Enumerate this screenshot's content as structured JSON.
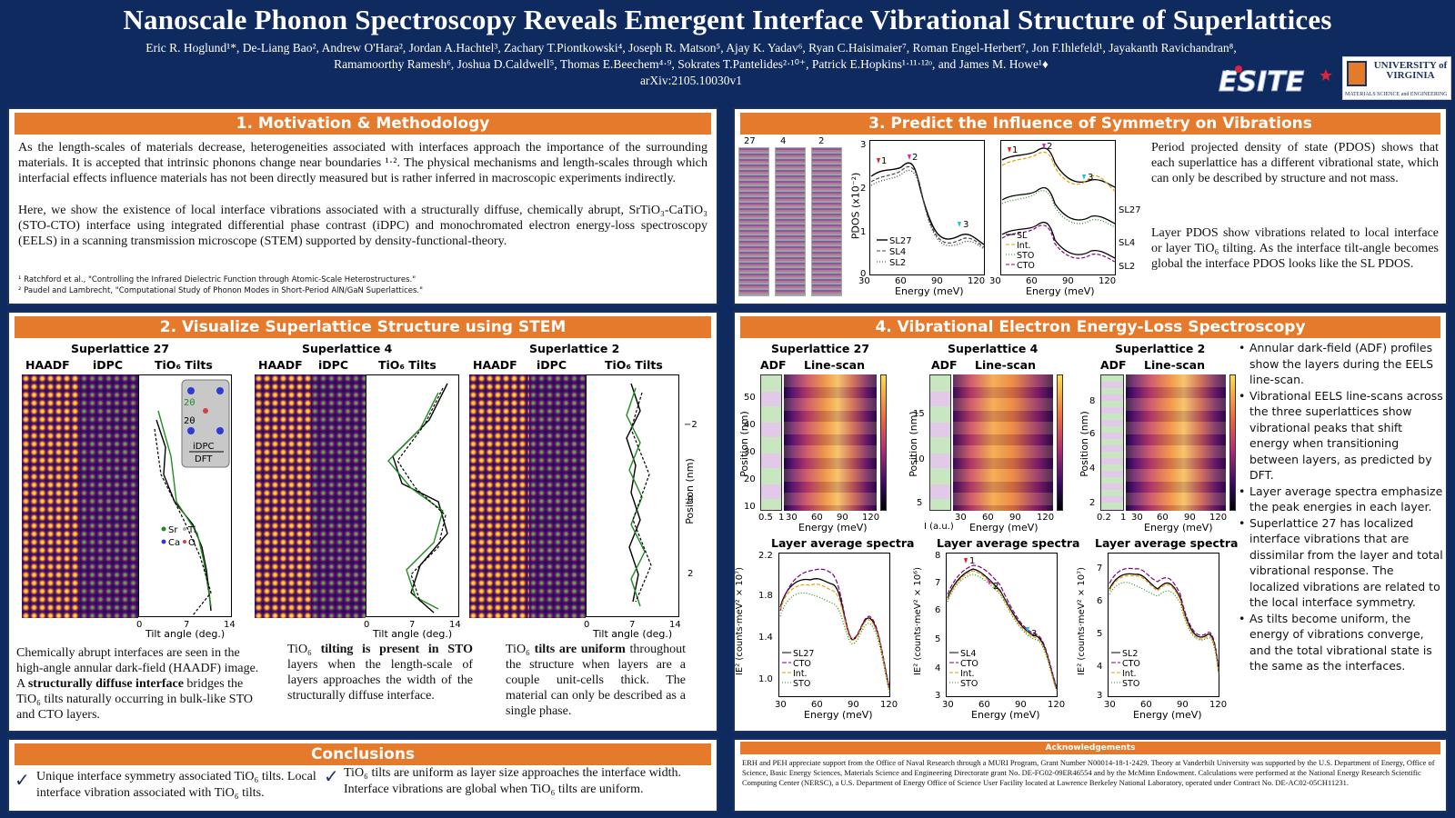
{
  "header": {
    "title": "Nanoscale Phonon Spectroscopy Reveals Emergent Interface Vibrational Structure of Superlattices",
    "authors_line1": "Eric R. Hoglund¹*, De-Liang Bao², Andrew O'Hara², Jordan A.Hachtel³, Zachary T.Piontkowski⁴, Joseph R. Matson⁵, Ajay K. Yadav⁶, Ryan C.Haisimaier⁷, Roman Engel-Herbert⁷, Jon F.Ihlefeld¹, Jayakanth Ravichandran⁸,",
    "authors_line2": "Ramamoorthy Ramesh⁶, Joshua D.Caldwell⁵, Thomas E.Beechem⁴·⁹, Sokrates T.Pantelides²·¹⁰⁺, Patrick E.Hopkins¹·¹¹·¹²ᵒ, and James M. Howe¹♦",
    "arxiv": "arXiv:2105.10030v1",
    "logo_esite": "ESITE",
    "logo_uva": "UNIVERSITY of VIRGINIA",
    "logo_uva_sub": "MATERIALS SCIENCE and ENGINEERING"
  },
  "panel1": {
    "heading": "1. Motivation & Methodology",
    "para1": "As the length-scales of materials decrease, heterogeneities associated with interfaces approach the importance of the surrounding materials. It is accepted that intrinsic phonons change near boundaries ¹·². The physical mechanisms and length-scales through which interfacial effects influence materials has not been directly measured but is rather inferred in macroscopic experiments indirectly.",
    "para2": "Here, we show the existence of local interface vibrations associated with a structurally diffuse, chemically abrupt, SrTiO₃-CaTiO₃ (STO-CTO) interface using integrated differential phase contrast (iDPC) and monochromated electron energy-loss spectroscopy (EELS) in a scanning transmission microscope (STEM) supported by density-functional-theory.",
    "ref1": "¹ Ratchford et al., \"Controlling the Infrared Dielectric Function through Atomic-Scale Heterostructures.\"",
    "ref2": "² Paudel and Lambrecht, \"Computational Study of Phonon Modes in Short-Period AlN/GaN Superlattices.\""
  },
  "panel2": {
    "heading": "2. Visualize Superlattice Structure using STEM",
    "groups": [
      {
        "title": "Superlattice 27",
        "haadf": "HAADF",
        "idpc": "iDPC",
        "tilts": "TiO₆ Tilts"
      },
      {
        "title": "Superlattice 4",
        "haadf": "HAADF",
        "idpc": "iDPC",
        "tilts": "TiO₆ Tilts"
      },
      {
        "title": "Superlattice 2",
        "haadf": "HAADF",
        "idpc": "iDPC",
        "tilts": "TiO₆ Tilts"
      }
    ],
    "xaxis_label": "Tilt angle (deg.)",
    "xticks": [
      "0",
      "7",
      "14"
    ],
    "yaxis_label": "Position (nm)",
    "yticks": [
      "−2",
      "0",
      "2"
    ],
    "inset": {
      "theta1": "2θ",
      "theta2": "2θ",
      "idpc": "iDPC",
      "dft": "DFT"
    },
    "legend": {
      "sr": "Sr",
      "ti": "Ti",
      "ca": "Ca",
      "o": "O"
    },
    "caption1_pre": "Chemically abrupt interfaces are seen in the high-angle annular dark-field (HAADF) image. A ",
    "caption1_bold": "structurally diffuse interface",
    "caption1_post": " bridges the TiO₆ tilts naturally occurring in bulk-like STO and CTO layers.",
    "caption2_pre": "TiO₆ ",
    "caption2_bold": "tilting is present in STO",
    "caption2_post": " layers when the length-scale of layers approaches the width of the structurally diffuse interface.",
    "caption3_pre": "TiO₆ ",
    "caption3_bold": "tilts are uniform",
    "caption3_post": " throughout the structure when layers are a couple unit-cells thick. The material can only be described as a single phase."
  },
  "panel3": {
    "heading": "3. Predict the Influence of Symmetry on Vibrations",
    "struct_labels": [
      "27",
      "4",
      "2"
    ],
    "pdos_ylabel": "PDOS (x10⁻²)",
    "xlabel": "Energy (meV)",
    "yticks": [
      "0",
      "1",
      "2",
      "3"
    ],
    "xticks": [
      "30",
      "60",
      "90",
      "120"
    ],
    "legend1": [
      "SL27",
      "SL4",
      "SL2"
    ],
    "legend2": [
      "SL",
      "Int.",
      "STO",
      "CTO"
    ],
    "side_labels": [
      "SL27",
      "SL4",
      "SL2"
    ],
    "markers": [
      "1",
      "2",
      "3"
    ],
    "text1": "Period projected density of state (PDOS) shows that each superlattice has a different vibrational state, which can only be described by structure and not mass.",
    "text2": "Layer PDOS show vibrations related to local interface or layer TiO₆ tilting. As the interface tilt-angle becomes global the interface PDOS looks like the SL PDOS."
  },
  "panel4": {
    "heading": "4. Vibrational Electron Energy-Loss Spectroscopy",
    "groups": [
      {
        "title": "Superlattice 27",
        "adf": "ADF",
        "linescan": "Line-scan",
        "yticks": [
          "50",
          "40",
          "30",
          "20",
          "10"
        ],
        "adf_ticks": [
          "0.5",
          "1"
        ]
      },
      {
        "title": "Superlattice 4",
        "adf": "ADF",
        "linescan": "Line-scan",
        "yticks": [
          "15",
          "10",
          "5"
        ],
        "adf_ticks": [
          "I (a.u.)"
        ]
      },
      {
        "title": "Superlattice 2",
        "adf": "ADF",
        "linescan": "Line-scan",
        "yticks": [
          "8",
          "6",
          "4",
          "2"
        ],
        "adf_ticks": [
          "0.2",
          "1"
        ]
      }
    ],
    "pos_label": "Position (nm)",
    "energy_label": "Energy (meV)",
    "xticks": [
      "30",
      "60",
      "90",
      "120"
    ],
    "spectra_title": "Layer average spectra",
    "spectra_ylabels": [
      "IE² (counts·meV² × 10⁷)",
      "IE² (counts·meV² × 10⁶)",
      "IE² (counts·meV² × 10⁷)"
    ],
    "spectra_yticks": [
      [
        "2.2",
        "1.8",
        "1.4",
        "1.0"
      ],
      [
        "8",
        "7",
        "6",
        "5",
        "4",
        "3"
      ],
      [
        "7",
        "6",
        "5",
        "4",
        "3"
      ]
    ],
    "spectra_legends": [
      [
        "SL27",
        "CTO",
        "Int.",
        "STO"
      ],
      [
        "SL4",
        "CTO",
        "Int.",
        "STO"
      ],
      [
        "SL2",
        "CTO",
        "Int.",
        "STO"
      ]
    ],
    "bullets": [
      "Annular dark-field (ADF) profiles show the layers during the EELS line-scan.",
      "Vibrational EELS line-scans across the three superlattices show vibrational peaks that shift energy when transitioning between layers, as predicted by DFT.",
      "Layer average spectra emphasize the peak energies in each layer.",
      "Superlattice 27 has localized interface vibrations that are dissimilar from the layer and total vibrational response. The localized vibrations are related to the local interface symmetry.",
      "As tilts become uniform, the energy of vibrations converge, and the total vibrational state is the same as the interfaces."
    ]
  },
  "conclusions": {
    "heading": "Conclusions",
    "item1": "Unique interface symmetry associated TiO₆ tilts. Local interface vibration associated with TiO₆ tilts.",
    "item2": "TiO₆ tilts are uniform as layer size approaches the interface width. Interface vibrations are global when TiO₆ tilts are uniform."
  },
  "ack": {
    "heading": "Acknowledgements",
    "text": "ERH and PEH appreciate support from the Office of Naval Research through a MURI Program, Grant Number N00014-18-1-2429. Theory at Vanderbilt University was supported by the U.S. Department of Energy, Office of Science, Basic Energy Sciences, Materials Science and Engineering Directorate grant No. DE-FG02-09ER46554 and by the McMinn Endowment. Calculations were performed at the National Energy Research Scientific Computing Center (NERSC), a U.S. Department of Energy Office of Science User Facility located at Lawrence Berkeley National Laboratory, operated under Contract No. DE-AC02-05CH11231."
  }
}
